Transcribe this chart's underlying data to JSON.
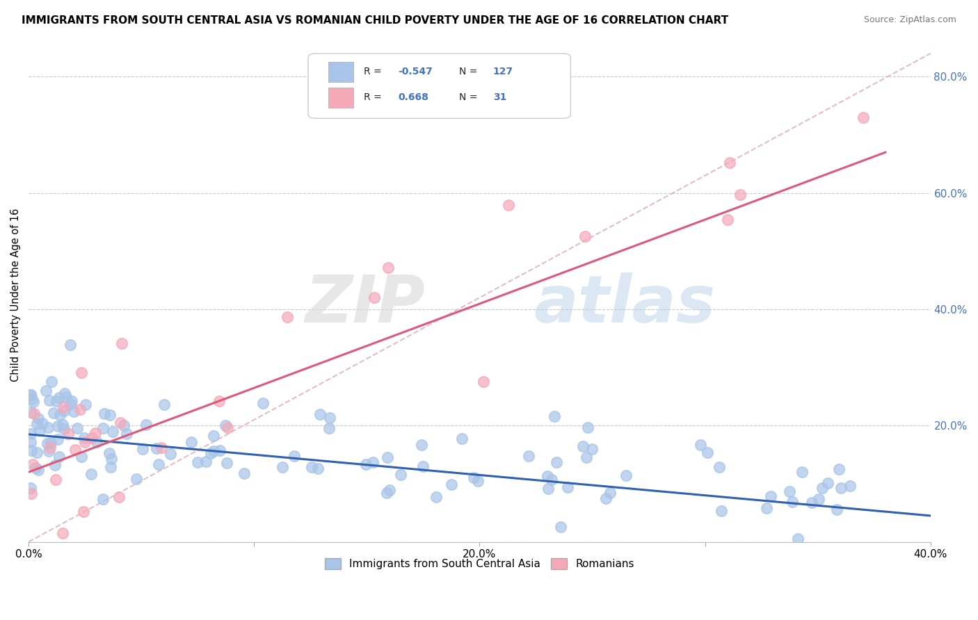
{
  "title": "IMMIGRANTS FROM SOUTH CENTRAL ASIA VS ROMANIAN CHILD POVERTY UNDER THE AGE OF 16 CORRELATION CHART",
  "source": "Source: ZipAtlas.com",
  "ylabel": "Child Poverty Under the Age of 16",
  "legend_label1": "Immigrants from South Central Asia",
  "legend_label2": "Romanians",
  "R1": -0.547,
  "N1": 127,
  "R2": 0.668,
  "N2": 31,
  "color1": "#a8c4e8",
  "color2": "#f4a8b8",
  "line1_color": "#3060b0",
  "line2_color": "#e05878",
  "diag_line_color": "#e0a0b0",
  "background_color": "#ffffff",
  "xlim": [
    0.0,
    0.4
  ],
  "ylim": [
    0.0,
    0.85
  ],
  "title_fontsize": 11,
  "source_fontsize": 9,
  "watermark_zip": "ZIP",
  "watermark_atlas": "atlas",
  "yticks": [
    0.0,
    0.2,
    0.4,
    0.6,
    0.8
  ],
  "ytick_labels": [
    "",
    "20.0%",
    "40.0%",
    "60.0%",
    "80.0%"
  ],
  "xticks": [
    0.0,
    0.1,
    0.2,
    0.3,
    0.4
  ],
  "xtick_labels": [
    "0.0%",
    "",
    "20.0%",
    "",
    "40.0%"
  ]
}
